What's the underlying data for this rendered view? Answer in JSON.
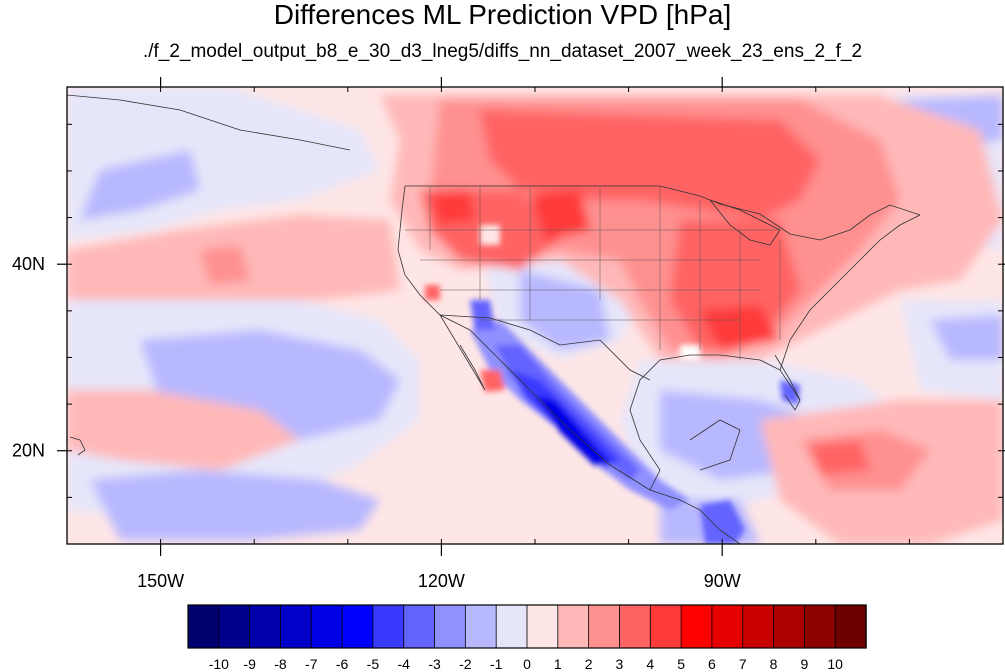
{
  "title": "Differences ML Prediction VPD [hPa]",
  "subtitle": "./f_2_model_output_b8_e_30_d3_lneg5/diffs_nn_dataset_2007_week_23_ens_2_f_2",
  "map": {
    "lon_range": [
      -160,
      -60
    ],
    "lat_range": [
      10,
      59
    ],
    "lon_ticks": [
      {
        "value": -150,
        "label": "150W"
      },
      {
        "value": -120,
        "label": "120W"
      },
      {
        "value": -90,
        "label": "90W"
      }
    ],
    "lat_ticks": [
      {
        "value": 40,
        "label": "40N"
      },
      {
        "value": 20,
        "label": "20N"
      }
    ]
  },
  "colorbar": {
    "labels": [
      "-10",
      "-9",
      "-8",
      "-7",
      "-6",
      "-5",
      "-4",
      "-3",
      "-2",
      "-1",
      "0",
      "1",
      "2",
      "3",
      "4",
      "5",
      "6",
      "7",
      "8",
      "9",
      "10"
    ],
    "colors": [
      "#00006e",
      "#00008c",
      "#0000aa",
      "#0000c8",
      "#0000e6",
      "#0000ff",
      "#3a3aff",
      "#6464ff",
      "#9090ff",
      "#b8b8ff",
      "#e6e6fa",
      "#ffe6e6",
      "#ffb8b8",
      "#ff9090",
      "#ff6464",
      "#ff3a3a",
      "#ff0000",
      "#e60000",
      "#c80000",
      "#aa0000",
      "#8c0000",
      "#6e0000"
    ]
  }
}
